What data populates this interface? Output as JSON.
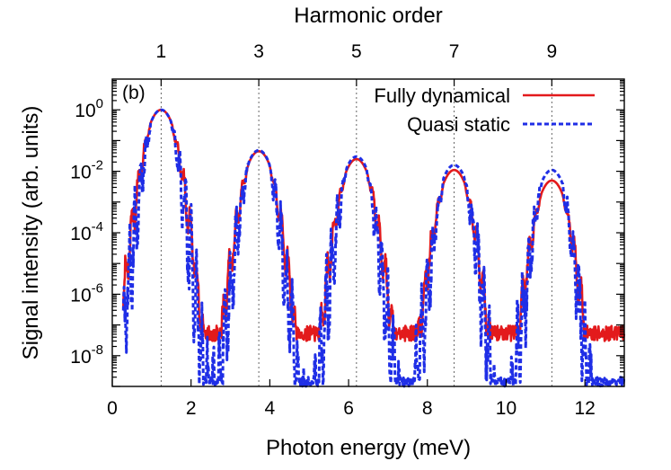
{
  "chart_data": {
    "type": "line",
    "panel_label": "(b)",
    "xlabel": "Photon energy (meV)",
    "ylabel": "Signal intensity (arb. units)",
    "x2label": "Harmonic order",
    "xlim": [
      0,
      13
    ],
    "ylim": [
      1e-09,
      10
    ],
    "yscale": "log",
    "x_ticks": [
      0,
      2,
      4,
      6,
      8,
      10,
      12
    ],
    "x_tick_labels": [
      "0",
      "2",
      "4",
      "6",
      "8",
      "10",
      "12"
    ],
    "y_ticks": [
      1e-08,
      1e-06,
      0.0001,
      0.01,
      1
    ],
    "y_tick_labels": [
      {
        "base": "10",
        "exp": "-8"
      },
      {
        "base": "10",
        "exp": "-6"
      },
      {
        "base": "10",
        "exp": "-4"
      },
      {
        "base": "10",
        "exp": "-2"
      },
      {
        "base": "10",
        "exp": "0"
      }
    ],
    "x2_ticks": [
      1.24,
      3.72,
      6.2,
      8.68,
      11.16
    ],
    "x2_tick_labels": [
      "1",
      "3",
      "5",
      "7",
      "9"
    ],
    "legend_position": "top-right",
    "series": [
      {
        "name": "Fully dynamical",
        "color": "#e31a1c",
        "style": "solid",
        "peaks": [
          {
            "x": 1.24,
            "y": 1.0
          },
          {
            "x": 3.72,
            "y": 0.045
          },
          {
            "x": 6.2,
            "y": 0.025
          },
          {
            "x": 8.68,
            "y": 0.011
          },
          {
            "x": 11.16,
            "y": 0.005
          }
        ],
        "floor": 3e-08
      },
      {
        "name": "Quasi static",
        "color": "#1f2ee6",
        "style": "dashed",
        "peaks": [
          {
            "x": 1.24,
            "y": 1.0
          },
          {
            "x": 3.72,
            "y": 0.048
          },
          {
            "x": 6.2,
            "y": 0.03
          },
          {
            "x": 8.68,
            "y": 0.016
          },
          {
            "x": 11.16,
            "y": 0.011
          }
        ],
        "floor": 1e-09
      }
    ]
  }
}
